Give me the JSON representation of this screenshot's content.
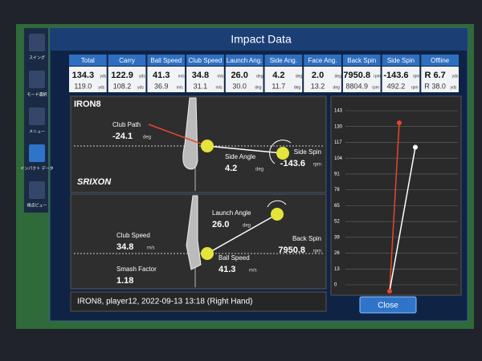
{
  "title": "Impact Data",
  "sidebar": [
    "スイング",
    "モード選択",
    "メニュー",
    "インパクト データ",
    "視点ビュー"
  ],
  "stats": [
    {
      "label": "Total",
      "value": "134.3",
      "previous": "119.0",
      "unit": "yds"
    },
    {
      "label": "Carry",
      "value": "122.9",
      "previous": "108.2",
      "unit": "yds"
    },
    {
      "label": "Ball Speed",
      "value": "41.3",
      "previous": "36.9",
      "unit": "m/s"
    },
    {
      "label": "Club Speed",
      "value": "34.8",
      "previous": "31.1",
      "unit": "m/s"
    },
    {
      "label": "Launch Ang.",
      "value": "26.0",
      "previous": "30.0",
      "unit": "deg"
    },
    {
      "label": "Side Ang.",
      "value": "4.2",
      "previous": "11.7",
      "unit": "deg"
    },
    {
      "label": "Face Ang.",
      "value": "2.0",
      "previous": "13.2",
      "unit": "deg"
    },
    {
      "label": "Back Spin",
      "value": "7950.8",
      "previous": "8804.9",
      "unit": "rpm"
    },
    {
      "label": "Side Spin",
      "value": "-143.6",
      "previous": "492.2",
      "unit": "rpm"
    },
    {
      "label": "Offline",
      "value": "R 6.7",
      "previous": "R 38.0",
      "unit": "yds"
    }
  ],
  "club": "IRON8",
  "brand": "SRIXON",
  "top_view": {
    "club_path": {
      "label": "Club Path",
      "value": "-24.1",
      "unit": "deg"
    },
    "side_angle": {
      "label": "Side Angle",
      "value": "4.2",
      "unit": "deg"
    },
    "side_spin": {
      "label": "Side Spin",
      "value": "-143.6",
      "unit": "rpm"
    }
  },
  "side_view": {
    "club_speed": {
      "label": "Club Speed",
      "value": "34.8",
      "unit": "m/s"
    },
    "smash_factor": {
      "label": "Smash Factor",
      "value": "1.18"
    },
    "launch_angle": {
      "label": "Launch Angle",
      "value": "26.0",
      "unit": "deg"
    },
    "ball_speed": {
      "label": "Ball Speed",
      "value": "41.3",
      "unit": "m/s"
    },
    "back_spin": {
      "label": "Back Spin",
      "value": "7950.8",
      "unit": "rpm"
    }
  },
  "footer": "IRON8, player12, 2022-09-13 13:18 (Right Hand)",
  "close": "Close",
  "trajectory": {
    "ylim": [
      0,
      143
    ],
    "yticks": [
      0,
      13,
      26,
      39,
      52,
      65,
      78,
      91,
      104,
      117,
      130,
      143
    ],
    "shots": [
      {
        "color": "#e8452c",
        "value": 133
      },
      {
        "color": "#ffffff",
        "value": 113
      }
    ]
  }
}
